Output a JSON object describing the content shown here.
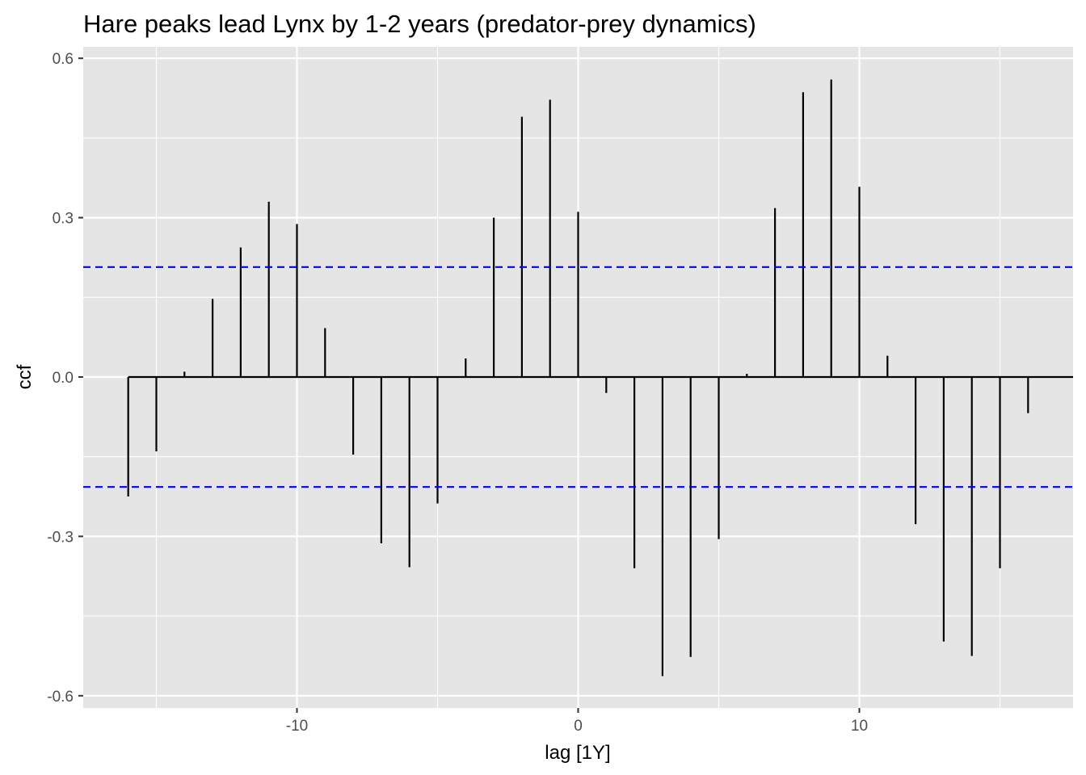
{
  "chart_data": {
    "type": "bar",
    "title": "Hare peaks lead Lynx by 1-2 years (predator-prey dynamics)",
    "xlabel": "lag [1Y]",
    "ylabel": "ccf",
    "xlim": [
      -17.6,
      17.6
    ],
    "ylim": [
      -0.617,
      0.6
    ],
    "x_ticks": [
      -10,
      0,
      10
    ],
    "x_tick_labels": [
      "-10",
      "0",
      "10"
    ],
    "y_ticks": [
      -0.6,
      -0.3,
      0.0,
      0.3,
      0.6
    ],
    "y_tick_labels": [
      "-0.6",
      "-0.3",
      "0.0",
      "0.3",
      "0.6"
    ],
    "grid": true,
    "confidence_bound": 0.207,
    "lags": [
      -16,
      -15,
      -14,
      -13,
      -12,
      -11,
      -10,
      -9,
      -8,
      -7,
      -6,
      -5,
      -4,
      -3,
      -2,
      -1,
      0,
      1,
      2,
      3,
      4,
      5,
      6,
      7,
      8,
      9,
      10,
      11,
      12,
      13,
      14,
      15,
      16
    ],
    "values": [
      -0.225,
      -0.14,
      0.01,
      0.147,
      0.244,
      0.33,
      0.288,
      0.092,
      -0.146,
      -0.313,
      -0.358,
      -0.238,
      0.035,
      0.3,
      0.49,
      0.522,
      0.311,
      -0.03,
      -0.36,
      -0.563,
      -0.527,
      -0.305,
      0.006,
      0.318,
      0.536,
      0.56,
      0.358,
      0.04,
      -0.277,
      -0.498,
      -0.525,
      -0.36,
      -0.068
    ],
    "colors": {
      "panel": "#e5e5e5",
      "grid": "#ffffff",
      "bar": "#000000",
      "bound": "#0000ff"
    }
  }
}
